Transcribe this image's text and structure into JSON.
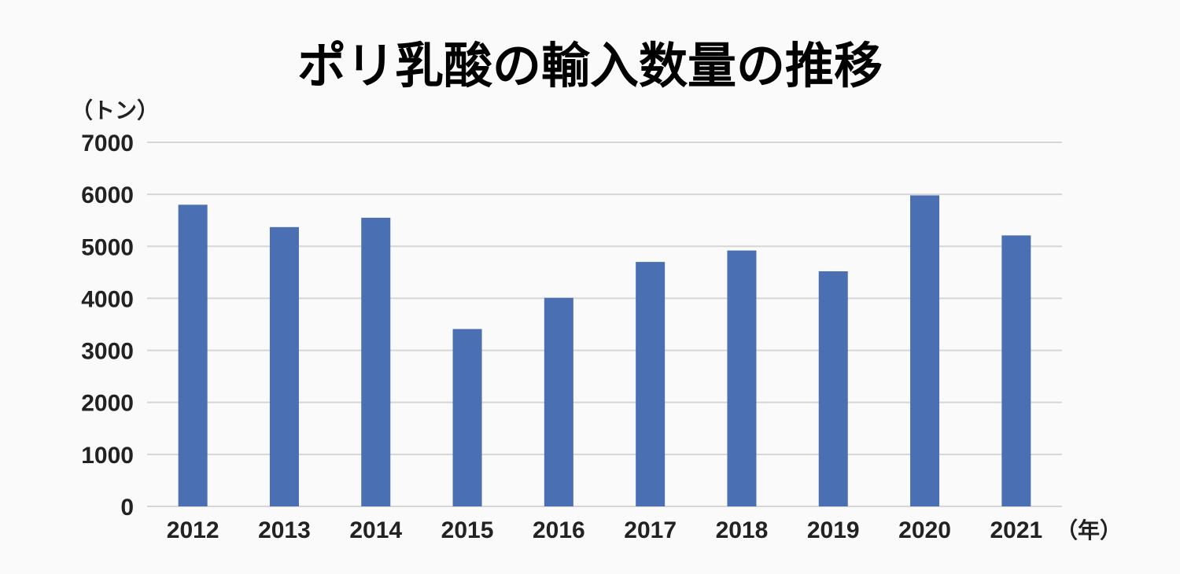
{
  "chart_data": {
    "type": "bar",
    "title": "ポリ乳酸の輸入数量の推移",
    "ylabel": "（トン）",
    "xlabel": "（年）",
    "categories": [
      "2012",
      "2013",
      "2014",
      "2015",
      "2016",
      "2017",
      "2018",
      "2019",
      "2020",
      "2021"
    ],
    "values": [
      5800,
      5370,
      5550,
      3410,
      4010,
      4700,
      4920,
      4520,
      5980,
      5210
    ],
    "ylim": [
      0,
      7000
    ],
    "yticks": [
      "0",
      "1000",
      "2000",
      "3000",
      "4000",
      "5000",
      "6000",
      "7000"
    ],
    "grid": true,
    "colors": {
      "bar": "#4a6fb3"
    }
  }
}
